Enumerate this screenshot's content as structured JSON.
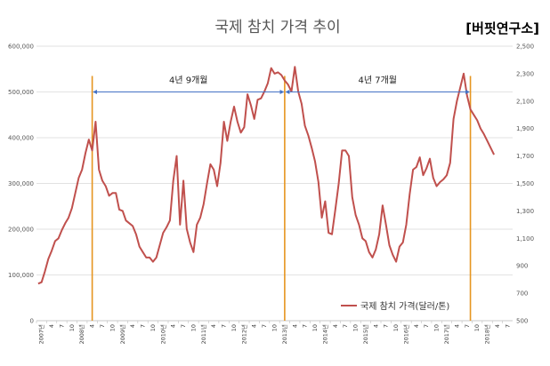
{
  "brand": "[버핏연구소]",
  "chart_data": {
    "type": "line",
    "title": "국제 참치 가격 추이",
    "legend": {
      "label": "국제 참치 가격(달러/톤)",
      "placement": "bottom-right"
    },
    "y_left": {
      "ticks": [
        0,
        100000,
        200000,
        300000,
        400000,
        500000,
        600000
      ],
      "tick_labels": [
        "0",
        "100,000",
        "200,000",
        "300,000",
        "400,000",
        "500,000",
        "600,000"
      ],
      "range": [
        0,
        600000
      ]
    },
    "y_right": {
      "ticks": [
        500,
        700,
        900,
        1100,
        1300,
        1500,
        1700,
        1900,
        2100,
        2300,
        2500
      ],
      "tick_labels": [
        "500",
        "700",
        "900",
        "1,100",
        "1,300",
        "1,500",
        "1,700",
        "1,900",
        "2,100",
        "2,300",
        "2,500"
      ],
      "range": [
        500,
        2500
      ]
    },
    "x_tick_labels": [
      "2007년",
      "4",
      "7",
      "10",
      "2008년",
      "4",
      "7",
      "10",
      "2009년",
      "4",
      "7",
      "10",
      "2010년",
      "4",
      "7",
      "10",
      "2011년",
      "4",
      "7",
      "10",
      "2012년",
      "4",
      "7",
      "10",
      "2013년",
      "4",
      "7",
      "10",
      "2014년",
      "4",
      "7",
      "10",
      "2015년",
      "4",
      "7",
      "10",
      "2016년",
      "4",
      "7",
      "10",
      "2017년",
      "4",
      "7",
      "10",
      "2018년",
      "4",
      "7"
    ],
    "vertical_markers": [
      {
        "date": "2008-05",
        "color": "#e69520"
      },
      {
        "date": "2013-02",
        "color": "#e69520"
      },
      {
        "date": "2017-09",
        "color": "#e69520"
      }
    ],
    "annotations": [
      {
        "label": "4년 9개월",
        "from": "2008-05",
        "to": "2013-02",
        "y": 500000
      },
      {
        "label": "4년 7개월",
        "from": "2013-02",
        "to": "2017-09",
        "y": 500000
      }
    ],
    "series": [
      {
        "color": "#c0504d",
        "axis": "right",
        "points": [
          [
            "2007-01",
            770
          ],
          [
            "2007-02",
            780
          ],
          [
            "2007-03",
            860
          ],
          [
            "2007-04",
            950
          ],
          [
            "2007-05",
            1010
          ],
          [
            "2007-06",
            1080
          ],
          [
            "2007-07",
            1100
          ],
          [
            "2007-08",
            1160
          ],
          [
            "2007-09",
            1210
          ],
          [
            "2007-10",
            1250
          ],
          [
            "2007-11",
            1320
          ],
          [
            "2007-12",
            1430
          ],
          [
            "2008-01",
            1540
          ],
          [
            "2008-02",
            1600
          ],
          [
            "2008-03",
            1720
          ],
          [
            "2008-04",
            1820
          ],
          [
            "2008-05",
            1740
          ],
          [
            "2008-06",
            1950
          ],
          [
            "2008-07",
            1600
          ],
          [
            "2008-08",
            1520
          ],
          [
            "2008-09",
            1480
          ],
          [
            "2008-10",
            1410
          ],
          [
            "2008-11",
            1430
          ],
          [
            "2008-12",
            1430
          ],
          [
            "2009-01",
            1310
          ],
          [
            "2009-02",
            1300
          ],
          [
            "2009-03",
            1230
          ],
          [
            "2009-04",
            1210
          ],
          [
            "2009-05",
            1190
          ],
          [
            "2009-06",
            1130
          ],
          [
            "2009-07",
            1040
          ],
          [
            "2009-08",
            1000
          ],
          [
            "2009-09",
            960
          ],
          [
            "2009-10",
            960
          ],
          [
            "2009-11",
            930
          ],
          [
            "2009-12",
            960
          ],
          [
            "2010-01",
            1050
          ],
          [
            "2010-02",
            1140
          ],
          [
            "2010-03",
            1180
          ],
          [
            "2010-04",
            1230
          ],
          [
            "2010-05",
            1520
          ],
          [
            "2010-06",
            1700
          ],
          [
            "2010-07",
            1200
          ],
          [
            "2010-08",
            1520
          ],
          [
            "2010-09",
            1170
          ],
          [
            "2010-10",
            1070
          ],
          [
            "2010-11",
            1000
          ],
          [
            "2010-12",
            1200
          ],
          [
            "2011-01",
            1250
          ],
          [
            "2011-02",
            1350
          ],
          [
            "2011-03",
            1500
          ],
          [
            "2011-04",
            1640
          ],
          [
            "2011-05",
            1600
          ],
          [
            "2011-06",
            1480
          ],
          [
            "2011-07",
            1650
          ],
          [
            "2011-08",
            1950
          ],
          [
            "2011-09",
            1810
          ],
          [
            "2011-10",
            1950
          ],
          [
            "2011-11",
            2060
          ],
          [
            "2011-12",
            1950
          ],
          [
            "2012-01",
            1870
          ],
          [
            "2012-02",
            1910
          ],
          [
            "2012-03",
            2150
          ],
          [
            "2012-04",
            2070
          ],
          [
            "2012-05",
            1970
          ],
          [
            "2012-06",
            2110
          ],
          [
            "2012-07",
            2120
          ],
          [
            "2012-08",
            2170
          ],
          [
            "2012-09",
            2230
          ],
          [
            "2012-10",
            2340
          ],
          [
            "2012-11",
            2300
          ],
          [
            "2012-12",
            2310
          ],
          [
            "2013-01",
            2290
          ],
          [
            "2013-02",
            2250
          ],
          [
            "2013-03",
            2220
          ],
          [
            "2013-04",
            2170
          ],
          [
            "2013-05",
            2350
          ],
          [
            "2013-06",
            2170
          ],
          [
            "2013-07",
            2080
          ],
          [
            "2013-08",
            1920
          ],
          [
            "2013-09",
            1850
          ],
          [
            "2013-10",
            1760
          ],
          [
            "2013-11",
            1660
          ],
          [
            "2013-12",
            1510
          ],
          [
            "2014-01",
            1250
          ],
          [
            "2014-02",
            1370
          ],
          [
            "2014-03",
            1140
          ],
          [
            "2014-04",
            1130
          ],
          [
            "2014-05",
            1310
          ],
          [
            "2014-06",
            1500
          ],
          [
            "2014-07",
            1740
          ],
          [
            "2014-08",
            1740
          ],
          [
            "2014-09",
            1700
          ],
          [
            "2014-10",
            1400
          ],
          [
            "2014-11",
            1270
          ],
          [
            "2014-12",
            1200
          ],
          [
            "2015-01",
            1100
          ],
          [
            "2015-02",
            1080
          ],
          [
            "2015-03",
            1000
          ],
          [
            "2015-04",
            960
          ],
          [
            "2015-05",
            1020
          ],
          [
            "2015-06",
            1130
          ],
          [
            "2015-07",
            1340
          ],
          [
            "2015-08",
            1200
          ],
          [
            "2015-09",
            1050
          ],
          [
            "2015-10",
            980
          ],
          [
            "2015-11",
            930
          ],
          [
            "2015-12",
            1040
          ],
          [
            "2016-01",
            1070
          ],
          [
            "2016-02",
            1200
          ],
          [
            "2016-03",
            1420
          ],
          [
            "2016-04",
            1600
          ],
          [
            "2016-05",
            1620
          ],
          [
            "2016-06",
            1690
          ],
          [
            "2016-07",
            1560
          ],
          [
            "2016-08",
            1610
          ],
          [
            "2016-09",
            1680
          ],
          [
            "2016-10",
            1540
          ],
          [
            "2016-11",
            1480
          ],
          [
            "2016-12",
            1510
          ],
          [
            "2017-01",
            1530
          ],
          [
            "2017-02",
            1560
          ],
          [
            "2017-03",
            1650
          ],
          [
            "2017-04",
            1970
          ],
          [
            "2017-05",
            2100
          ],
          [
            "2017-06",
            2200
          ],
          [
            "2017-07",
            2300
          ],
          [
            "2017-08",
            2140
          ],
          [
            "2017-09",
            2040
          ],
          [
            "2017-10",
            2000
          ],
          [
            "2017-11",
            1960
          ],
          [
            "2017-12",
            1900
          ],
          [
            "2018-01",
            1860
          ],
          [
            "2018-02",
            1810
          ],
          [
            "2018-03",
            1760
          ],
          [
            "2018-04",
            1710
          ]
        ]
      }
    ]
  }
}
